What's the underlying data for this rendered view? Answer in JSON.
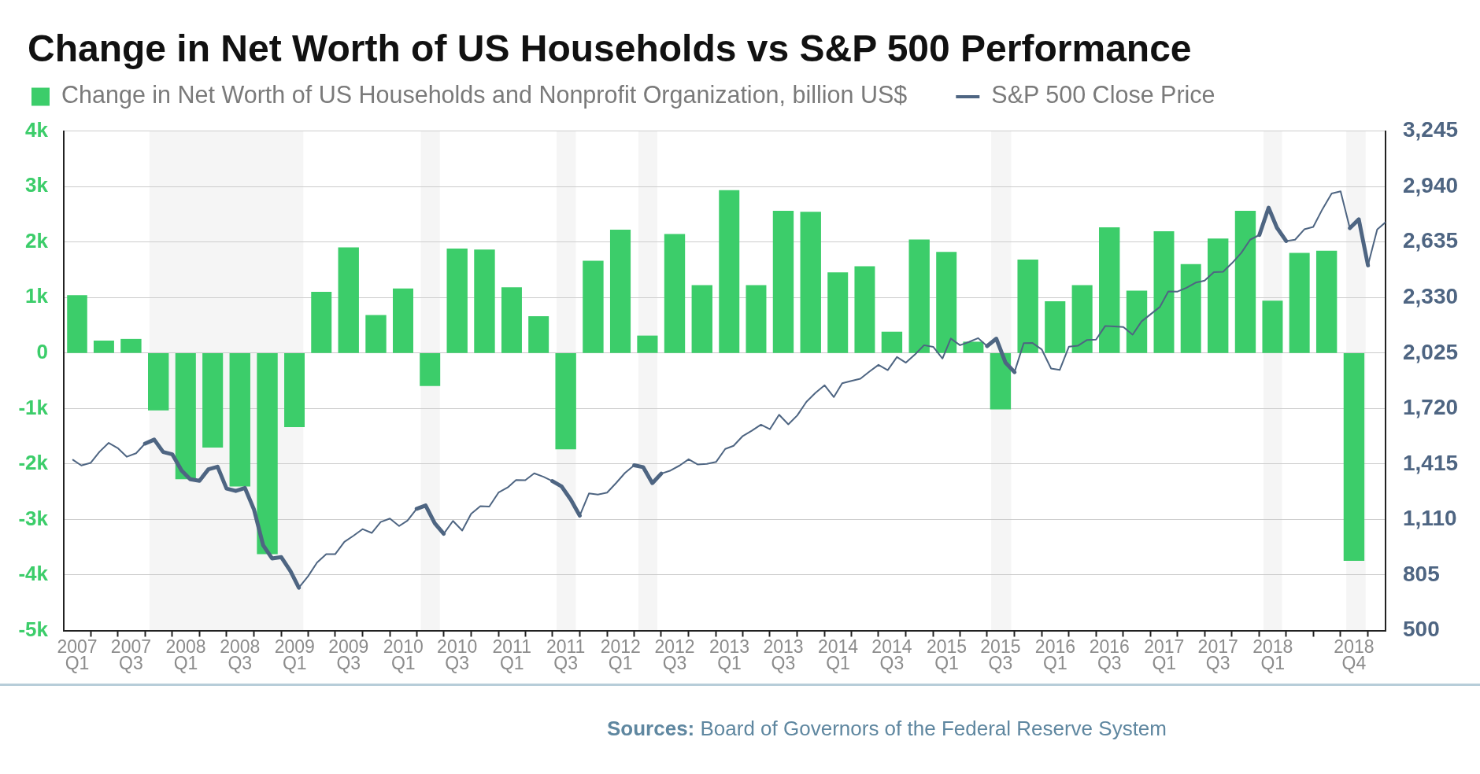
{
  "chart_data": {
    "type": "bar",
    "title": "Change in Net Worth of US Households vs S&P 500 Performance",
    "annotations": [
      "Sources: Board of Governors of the Federal Reserve System"
    ],
    "series": [
      {
        "name": "Change in Net Worth of US Households and Nonprofit Organization, billion US$",
        "color": "#3ccd6a",
        "x": [
          "2007-02-15",
          "2007-05-15",
          "2007-08-15",
          "2007-11-15",
          "2008-02-15",
          "2008-05-15",
          "2008-08-15",
          "2008-11-15",
          "2009-02-15",
          "2009-05-15",
          "2009-08-15",
          "2009-11-15",
          "2010-02-15",
          "2010-05-15",
          "2010-08-15",
          "2010-11-15",
          "2011-02-15",
          "2011-05-15",
          "2011-08-15",
          "2011-11-15",
          "2012-02-15",
          "2012-05-15",
          "2012-08-15",
          "2012-11-15",
          "2013-02-15",
          "2013-05-15",
          "2013-08-15",
          "2013-11-15",
          "2014-02-15",
          "2014-05-15",
          "2014-08-15",
          "2014-11-15",
          "2015-02-15",
          "2015-05-15",
          "2015-08-15",
          "2015-11-15",
          "2016-02-15",
          "2016-05-15",
          "2016-08-15",
          "2016-11-15",
          "2017-02-15",
          "2017-05-15",
          "2017-08-15",
          "2017-11-15",
          "2018-02-15",
          "2018-05-15",
          "2018-08-15",
          "2018-11-15"
        ],
        "values": [
          1040,
          220,
          250,
          -1030,
          -2270,
          -1700,
          -2400,
          -3620,
          -1330,
          1100,
          1900,
          680,
          1160,
          -590,
          1880,
          1860,
          1180,
          660,
          -1730,
          1660,
          2220,
          310,
          2140,
          1220,
          2930,
          1220,
          2560,
          2540,
          1450,
          1560,
          380,
          2040,
          1820,
          200,
          -1010,
          1680,
          930,
          1220,
          2260,
          1120,
          2190,
          1600,
          2060,
          2560,
          940,
          1800,
          1840,
          -3740
        ]
      },
      {
        "name": "S&P 500 Close Price",
        "type": "line",
        "axis": "y2",
        "color": "#4e6582",
        "x": [
          "2007-02",
          "2007-03",
          "2007-04",
          "2007-05",
          "2007-06",
          "2007-07",
          "2007-08",
          "2007-09",
          "2007-10",
          "2007-11",
          "2007-12",
          "2008-01",
          "2008-02",
          "2008-03",
          "2008-04",
          "2008-05",
          "2008-06",
          "2008-07",
          "2008-08",
          "2008-09",
          "2008-10",
          "2008-11",
          "2008-12",
          "2009-01",
          "2009-02",
          "2009-03",
          "2009-04",
          "2009-05",
          "2009-06",
          "2009-07",
          "2009-08",
          "2009-09",
          "2009-10",
          "2009-11",
          "2009-12",
          "2010-01",
          "2010-02",
          "2010-03",
          "2010-04",
          "2010-05",
          "2010-06",
          "2010-07",
          "2010-08",
          "2010-09",
          "2010-10",
          "2010-11",
          "2010-12",
          "2011-01",
          "2011-02",
          "2011-03",
          "2011-04",
          "2011-05",
          "2011-06",
          "2011-07",
          "2011-08",
          "2011-09",
          "2011-10",
          "2011-11",
          "2011-12",
          "2012-01",
          "2012-02",
          "2012-03",
          "2012-04",
          "2012-05",
          "2012-06",
          "2012-07",
          "2012-08",
          "2012-09",
          "2012-10",
          "2012-11",
          "2012-12",
          "2013-01",
          "2013-02",
          "2013-03",
          "2013-04",
          "2013-05",
          "2013-06",
          "2013-07",
          "2013-08",
          "2013-09",
          "2013-10",
          "2013-11",
          "2013-12",
          "2014-01",
          "2014-02",
          "2014-03",
          "2014-04",
          "2014-05",
          "2014-06",
          "2014-07",
          "2014-08",
          "2014-09",
          "2014-10",
          "2014-11",
          "2014-12",
          "2015-01",
          "2015-02",
          "2015-03",
          "2015-04",
          "2015-05",
          "2015-06",
          "2015-07",
          "2015-08",
          "2015-09",
          "2015-10",
          "2015-11",
          "2015-12",
          "2016-01",
          "2016-02",
          "2016-03",
          "2016-04",
          "2016-05",
          "2016-06",
          "2016-07",
          "2016-08",
          "2016-09",
          "2016-10",
          "2016-11",
          "2016-12",
          "2017-01",
          "2017-02",
          "2017-03",
          "2017-04",
          "2017-05",
          "2017-06",
          "2017-07",
          "2017-08",
          "2017-09",
          "2017-10",
          "2017-11",
          "2017-12",
          "2018-01",
          "2018-02",
          "2018-03",
          "2018-04",
          "2018-05",
          "2018-06",
          "2018-07",
          "2018-08",
          "2018-09",
          "2018-10",
          "2018-11",
          "2018-12",
          "2019-01",
          "2019-02",
          "2019-03"
        ],
        "values": [
          1438,
          1407,
          1421,
          1482,
          1531,
          1503,
          1455,
          1474,
          1527,
          1549,
          1481,
          1468,
          1379,
          1331,
          1323,
          1386,
          1400,
          1280,
          1267,
          1283,
          1166,
          969,
          896,
          903,
          826,
          735,
          798,
          873,
          919,
          919,
          987,
          1021,
          1057,
          1036,
          1096,
          1115,
          1074,
          1104,
          1169,
          1187,
          1089,
          1031,
          1102,
          1049,
          1141,
          1183,
          1181,
          1258,
          1286,
          1327,
          1326,
          1364,
          1345,
          1321,
          1292,
          1219,
          1131,
          1253,
          1247,
          1258,
          1312,
          1366,
          1408,
          1398,
          1310,
          1362,
          1379,
          1407,
          1441,
          1412,
          1416,
          1426,
          1498,
          1515,
          1569,
          1598,
          1631,
          1606,
          1686,
          1633,
          1682,
          1757,
          1806,
          1848,
          1783,
          1859,
          1872,
          1884,
          1924,
          1960,
          1931,
          2003,
          1972,
          2018,
          2068,
          2059,
          1995,
          2105,
          2068,
          2086,
          2107,
          2063,
          2104,
          1972,
          1920,
          2079,
          2080,
          2044,
          1940,
          1932,
          2060,
          2065,
          2097,
          2099,
          2174,
          2171,
          2168,
          2126,
          2199,
          2239,
          2279,
          2364,
          2363,
          2384,
          2412,
          2423,
          2470,
          2472,
          2519,
          2575,
          2648,
          2674,
          2824,
          2714,
          2641,
          2648,
          2705,
          2718,
          2816,
          2902,
          2914,
          2712,
          2760,
          2507,
          2704,
          2744
        ]
      }
    ],
    "xlim": [
      "2007-01",
      "2019-03"
    ],
    "xticks": [
      {
        "value": "2007-02-15",
        "label": "2007 Q1"
      },
      {
        "value": "2007-04-01",
        "label": null
      },
      {
        "value": "2007-07-01",
        "label": null
      },
      {
        "value": "2007-08-15",
        "label": "2007 Q3"
      },
      {
        "value": "2007-10-01",
        "label": null
      },
      {
        "value": "2008-01-01",
        "label": null
      },
      {
        "value": "2008-02-15",
        "label": "2008 Q1"
      },
      {
        "value": "2008-04-01",
        "label": null
      },
      {
        "value": "2008-07-01",
        "label": null
      },
      {
        "value": "2008-08-15",
        "label": "2008 Q3"
      },
      {
        "value": "2008-10-01",
        "label": null
      },
      {
        "value": "2009-01-01",
        "label": null
      },
      {
        "value": "2009-02-15",
        "label": "2009 Q1"
      },
      {
        "value": "2009-04-01",
        "label": null
      },
      {
        "value": "2009-07-01",
        "label": null
      },
      {
        "value": "2009-08-15",
        "label": "2009 Q3"
      },
      {
        "value": "2009-10-01",
        "label": null
      },
      {
        "value": "2010-01-01",
        "label": null
      },
      {
        "value": "2010-02-15",
        "label": "2010 Q1"
      },
      {
        "value": "2010-04-01",
        "label": null
      },
      {
        "value": "2010-07-01",
        "label": null
      },
      {
        "value": "2010-08-15",
        "label": "2010 Q3"
      },
      {
        "value": "2010-10-01",
        "label": null
      },
      {
        "value": "2011-01-01",
        "label": null
      },
      {
        "value": "2011-02-15",
        "label": "2011 Q1"
      },
      {
        "value": "2011-04-01",
        "label": null
      },
      {
        "value": "2011-07-01",
        "label": null
      },
      {
        "value": "2011-08-15",
        "label": "2011 Q3"
      },
      {
        "value": "2011-10-01",
        "label": null
      },
      {
        "value": "2012-01-01",
        "label": null
      },
      {
        "value": "2012-02-15",
        "label": "2012 Q1"
      },
      {
        "value": "2012-04-01",
        "label": null
      },
      {
        "value": "2012-07-01",
        "label": null
      },
      {
        "value": "2012-08-15",
        "label": "2012 Q3"
      },
      {
        "value": "2012-10-01",
        "label": null
      },
      {
        "value": "2013-01-01",
        "label": null
      },
      {
        "value": "2013-02-15",
        "label": "2013 Q1"
      },
      {
        "value": "2013-04-01",
        "label": null
      },
      {
        "value": "2013-07-01",
        "label": null
      },
      {
        "value": "2013-08-15",
        "label": "2013 Q3"
      },
      {
        "value": "2013-10-01",
        "label": null
      },
      {
        "value": "2014-01-01",
        "label": null
      },
      {
        "value": "2014-02-15",
        "label": "2014 Q1"
      },
      {
        "value": "2014-04-01",
        "label": null
      },
      {
        "value": "2014-07-01",
        "label": null
      },
      {
        "value": "2014-08-15",
        "label": "2014 Q3"
      },
      {
        "value": "2014-10-01",
        "label": null
      },
      {
        "value": "2015-01-01",
        "label": null
      },
      {
        "value": "2015-02-15",
        "label": "2015 Q1"
      },
      {
        "value": "2015-04-01",
        "label": null
      },
      {
        "value": "2015-07-01",
        "label": null
      },
      {
        "value": "2015-08-15",
        "label": "2015 Q3"
      },
      {
        "value": "2015-10-01",
        "label": null
      },
      {
        "value": "2016-01-01",
        "label": null
      },
      {
        "value": "2016-02-15",
        "label": "2016 Q1"
      },
      {
        "value": "2016-04-01",
        "label": null
      },
      {
        "value": "2016-07-01",
        "label": null
      },
      {
        "value": "2016-08-15",
        "label": "2016 Q3"
      },
      {
        "value": "2016-10-01",
        "label": null
      },
      {
        "value": "2017-01-01",
        "label": null
      },
      {
        "value": "2017-02-15",
        "label": "2017 Q1"
      },
      {
        "value": "2017-04-01",
        "label": null
      },
      {
        "value": "2017-07-01",
        "label": null
      },
      {
        "value": "2017-08-15",
        "label": "2017 Q3"
      },
      {
        "value": "2017-10-01",
        "label": null
      },
      {
        "value": "2018-01-01",
        "label": null
      },
      {
        "value": "2018-02-15",
        "label": "2018 Q1"
      },
      {
        "value": "2018-04-01",
        "label": null
      },
      {
        "value": "2018-07-01",
        "label": null
      },
      {
        "value": "2018-10-01",
        "label": null
      },
      {
        "value": "2018-11-15",
        "label": "2018 Q4"
      },
      {
        "value": "2019-01-01",
        "label": null
      }
    ],
    "ylim": [
      -5000,
      4000
    ],
    "yticks": [
      {
        "value": -5000,
        "label": "-5k"
      },
      {
        "value": -4000,
        "label": "-4k"
      },
      {
        "value": -3000,
        "label": "-3k"
      },
      {
        "value": -2000,
        "label": "-2k"
      },
      {
        "value": -1000,
        "label": "-1k"
      },
      0,
      {
        "value": 1000,
        "label": "1k"
      },
      {
        "value": 2000,
        "label": "2k"
      },
      {
        "value": 3000,
        "label": "3k"
      },
      {
        "value": 4000,
        "label": "4k"
      }
    ],
    "y2lim": [
      500,
      3245
    ],
    "y2ticks": [
      500,
      805,
      {
        "value": 1110,
        "label": "1,110"
      },
      {
        "value": 1415,
        "label": "1,415"
      },
      {
        "value": 1720,
        "label": "1,720"
      },
      {
        "value": 2025,
        "label": "2,025"
      },
      {
        "value": 2330,
        "label": "2,330"
      },
      {
        "value": 2635,
        "label": "2,635"
      },
      {
        "value": 2940,
        "label": "2,940"
      },
      {
        "value": 3245,
        "label": "3,245"
      }
    ],
    "bands": [
      {
        "axis": "x",
        "from": "2007-10-16",
        "to": "2009-03-16",
        "color": "#f5f5f5"
      },
      {
        "axis": "x",
        "from": "2010-04-15",
        "to": "2010-06-18",
        "color": "#f5f5f5"
      },
      {
        "axis": "x",
        "from": "2011-07-15",
        "to": "2011-09-18",
        "color": "#f5f5f5"
      },
      {
        "axis": "x",
        "from": "2012-04-15",
        "to": "2012-06-18",
        "color": "#f5f5f5"
      },
      {
        "axis": "x",
        "from": "2015-07-15",
        "to": "2015-09-20",
        "color": "#f5f5f5"
      },
      {
        "axis": "x",
        "from": "2018-01-15",
        "to": "2018-03-18",
        "color": "#f5f5f5"
      },
      {
        "axis": "x",
        "from": "2018-10-20",
        "to": "2018-12-24",
        "color": "#f5f5f5"
      }
    ],
    "grid": "y",
    "legend": "top left"
  }
}
